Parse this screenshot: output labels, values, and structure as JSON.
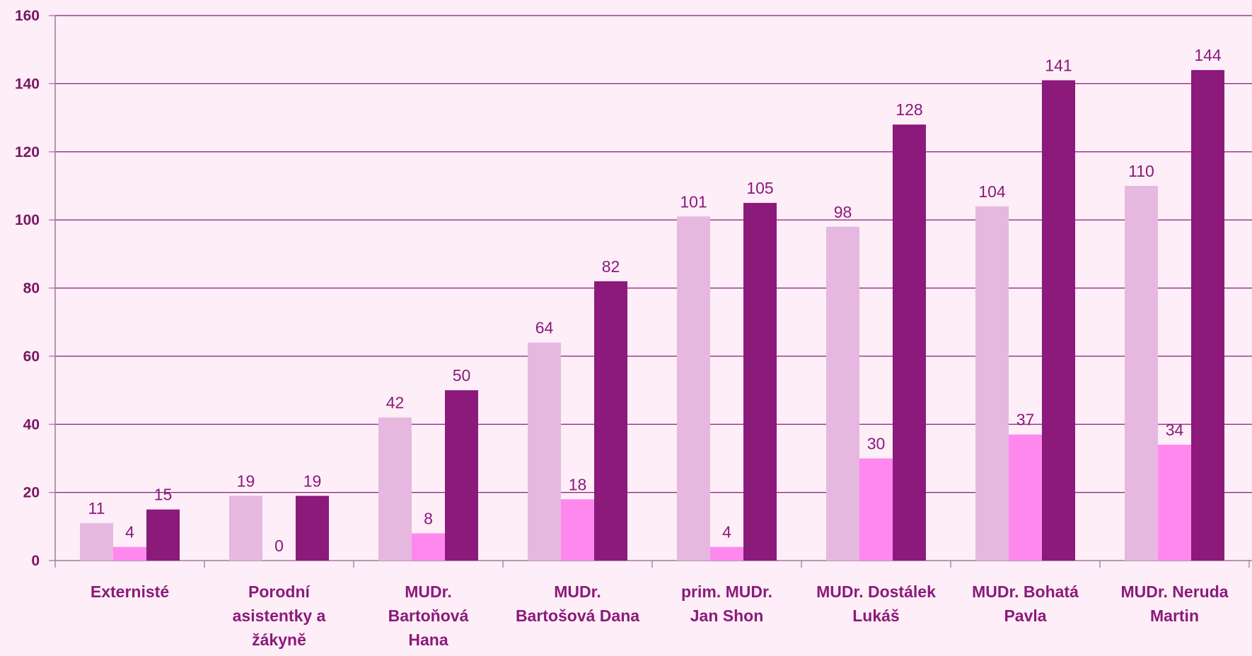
{
  "chart_data": {
    "type": "bar",
    "categories": [
      [
        "Externisté"
      ],
      [
        "Porodní",
        "asistentky a",
        "žákyně"
      ],
      [
        "MUDr.",
        "Bartoňová",
        "Hana"
      ],
      [
        "MUDr.",
        "Bartošová Dana"
      ],
      [
        "prim. MUDr.",
        "Jan Shon"
      ],
      [
        "MUDr. Dostálek",
        "Lukáš"
      ],
      [
        "MUDr. Bohatá",
        "Pavla"
      ],
      [
        "MUDr. Neruda",
        "Martin"
      ]
    ],
    "series": [
      {
        "color": "#e6b8e0",
        "values": [
          11,
          19,
          42,
          64,
          101,
          98,
          104,
          110
        ]
      },
      {
        "color": "#ff88ee",
        "values": [
          4,
          0,
          8,
          18,
          4,
          30,
          37,
          34
        ]
      },
      {
        "color": "#8b1a7a",
        "values": [
          15,
          19,
          50,
          82,
          105,
          128,
          141,
          144
        ]
      }
    ],
    "ylim": [
      0,
      160
    ],
    "yticks": [
      0,
      20,
      40,
      60,
      80,
      100,
      120,
      140,
      160
    ],
    "grid": true,
    "legend": "none"
  }
}
